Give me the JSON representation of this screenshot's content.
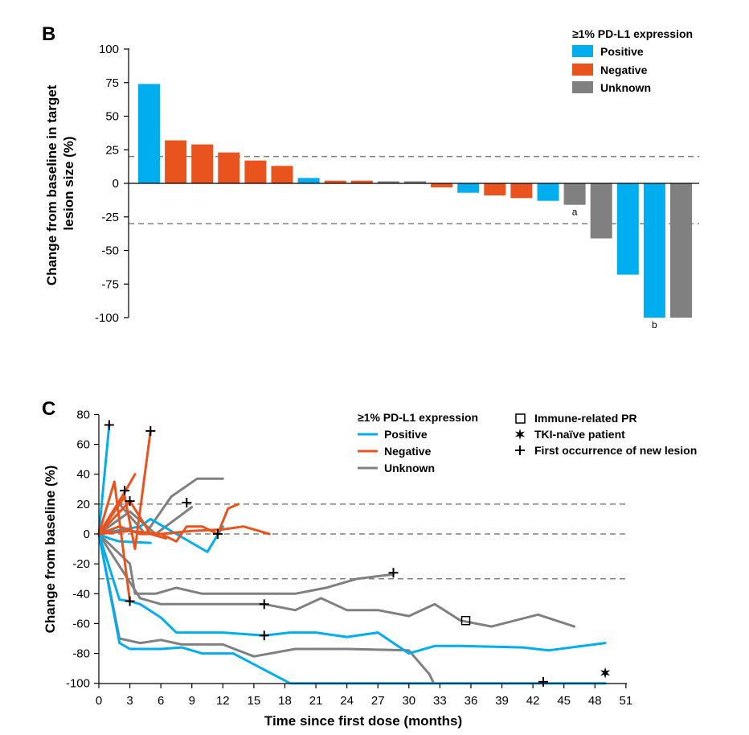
{
  "colors": {
    "Positive": "#00aeef",
    "Negative": "#e8531e",
    "Unknown": "#808080",
    "ref": "#808080"
  },
  "chart_data": [
    {
      "panel": "B",
      "type": "bar",
      "ylabel_lines": [
        "Change from baseline in target",
        "lesion size (%)"
      ],
      "ylim": [
        -100,
        100
      ],
      "yticks": [
        100,
        75,
        50,
        25,
        0,
        -25,
        -50,
        -75,
        -100
      ],
      "ref_lines": [
        20,
        -30
      ],
      "legend": {
        "title": "≥1% PD-L1 expression",
        "entries": [
          "Positive",
          "Negative",
          "Unknown"
        ]
      },
      "bars": [
        {
          "value": 74,
          "group": "Positive"
        },
        {
          "value": 32,
          "group": "Negative"
        },
        {
          "value": 29,
          "group": "Negative"
        },
        {
          "value": 23,
          "group": "Negative"
        },
        {
          "value": 17,
          "group": "Negative"
        },
        {
          "value": 13,
          "group": "Negative"
        },
        {
          "value": 4,
          "group": "Positive"
        },
        {
          "value": 2,
          "group": "Negative"
        },
        {
          "value": 2,
          "group": "Negative"
        },
        {
          "value": 1.5,
          "group": "Unknown"
        },
        {
          "value": 1.5,
          "group": "Unknown"
        },
        {
          "value": -3,
          "group": "Negative"
        },
        {
          "value": -7,
          "group": "Positive"
        },
        {
          "value": -9,
          "group": "Negative"
        },
        {
          "value": -11,
          "group": "Negative"
        },
        {
          "value": -13,
          "group": "Positive"
        },
        {
          "value": -16,
          "group": "Unknown",
          "note": "a"
        },
        {
          "value": -41,
          "group": "Unknown"
        },
        {
          "value": -68,
          "group": "Positive"
        },
        {
          "value": -100,
          "group": "Positive",
          "note": "b"
        },
        {
          "value": -100,
          "group": "Unknown"
        }
      ]
    },
    {
      "panel": "C",
      "type": "line",
      "xlabel": "Time since first dose (months)",
      "ylabel": "Change from baseline (%)",
      "xlim": [
        0,
        51
      ],
      "ylim": [
        -100,
        80
      ],
      "xticks": [
        0,
        3,
        6,
        9,
        12,
        15,
        18,
        21,
        24,
        27,
        30,
        33,
        36,
        39,
        42,
        45,
        48,
        51
      ],
      "yticks": [
        80,
        60,
        40,
        20,
        0,
        -20,
        -40,
        -60,
        -80,
        -100
      ],
      "ref_lines": [
        20,
        0,
        -30
      ],
      "legend": {
        "title": "≥1% PD-L1 expression",
        "entries": [
          "Positive",
          "Negative",
          "Unknown"
        ]
      },
      "marker_legend": [
        "Immune-related PR",
        "TKI-naïve patient",
        "First occurrence of new lesion"
      ],
      "series": [
        {
          "group": "Unknown",
          "points": [
            [
              0,
              0
            ],
            [
              2,
              20
            ],
            [
              4.5,
              0
            ],
            [
              7,
              25
            ],
            [
              9.5,
              37
            ],
            [
              12,
              37
            ]
          ]
        },
        {
          "group": "Unknown",
          "points": [
            [
              0,
              0
            ],
            [
              3,
              15
            ],
            [
              5.5,
              0
            ],
            [
              9,
              18
            ]
          ]
        },
        {
          "group": "Unknown",
          "points": [
            [
              0,
              0
            ],
            [
              3,
              -20
            ],
            [
              3.5,
              -40
            ],
            [
              5.5,
              -40
            ],
            [
              7.5,
              -36
            ],
            [
              10,
              -40
            ],
            [
              13,
              -40
            ],
            [
              19,
              -40
            ],
            [
              22,
              -36
            ],
            [
              25,
              -30
            ],
            [
              28.5,
              -27
            ]
          ]
        },
        {
          "group": "Unknown",
          "points": [
            [
              0,
              0
            ],
            [
              4,
              -43
            ],
            [
              6,
              -47
            ],
            [
              10,
              -47
            ],
            [
              14,
              -47
            ],
            [
              16,
              -47
            ],
            [
              19,
              -51
            ],
            [
              21.5,
              -43
            ],
            [
              24,
              -51
            ],
            [
              27,
              -51
            ],
            [
              30,
              -55
            ],
            [
              32.5,
              -47
            ],
            [
              35,
              -58
            ],
            [
              38,
              -62
            ],
            [
              42.5,
              -54
            ],
            [
              46,
              -62
            ]
          ]
        },
        {
          "group": "Unknown",
          "points": [
            [
              0,
              0
            ],
            [
              2,
              -70
            ],
            [
              4,
              -73
            ],
            [
              6,
              -71
            ],
            [
              8,
              -74
            ],
            [
              12,
              -74
            ],
            [
              15,
              -82
            ],
            [
              19,
              -77
            ],
            [
              24,
              -77
            ],
            [
              30,
              -78
            ],
            [
              32,
              -94
            ],
            [
              32.4,
              -100
            ]
          ]
        },
        {
          "group": "Positive",
          "points": [
            [
              0,
              0
            ],
            [
              1,
              73
            ]
          ]
        },
        {
          "group": "Positive",
          "points": [
            [
              0,
              0
            ],
            [
              1,
              -3
            ],
            [
              2,
              -5
            ],
            [
              5,
              -6
            ]
          ]
        },
        {
          "group": "Positive",
          "points": [
            [
              0,
              0
            ],
            [
              4,
              5
            ],
            [
              5,
              10
            ],
            [
              7.5,
              0
            ],
            [
              10.5,
              -12
            ],
            [
              12,
              5
            ]
          ]
        },
        {
          "group": "Positive",
          "points": [
            [
              0,
              0
            ],
            [
              2,
              -44
            ],
            [
              3,
              -45
            ],
            [
              4,
              -47
            ],
            [
              6,
              -56
            ],
            [
              7.5,
              -66
            ],
            [
              12,
              -66
            ],
            [
              16,
              -68
            ],
            [
              18.5,
              -66
            ],
            [
              21,
              -66
            ],
            [
              24,
              -69
            ],
            [
              27,
              -66
            ],
            [
              30,
              -80
            ],
            [
              32.5,
              -75
            ],
            [
              35,
              -75
            ],
            [
              41,
              -76
            ],
            [
              43.5,
              -78
            ],
            [
              49,
              -73
            ]
          ]
        },
        {
          "group": "Positive",
          "points": [
            [
              0,
              0
            ],
            [
              2,
              -73
            ],
            [
              3,
              -77
            ],
            [
              6,
              -77
            ],
            [
              8,
              -76
            ],
            [
              10,
              -80
            ],
            [
              13,
              -80
            ],
            [
              18.5,
              -100
            ],
            [
              30,
              -100
            ],
            [
              49,
              -100
            ]
          ]
        },
        {
          "group": "Negative",
          "points": [
            [
              0,
              0
            ],
            [
              1.5,
              35
            ],
            [
              3,
              -45
            ]
          ]
        },
        {
          "group": "Negative",
          "points": [
            [
              0,
              0
            ],
            [
              2.5,
              28
            ],
            [
              3.5,
              40
            ]
          ]
        },
        {
          "group": "Negative",
          "points": [
            [
              0,
              0
            ],
            [
              2.5,
              25
            ],
            [
              3.5,
              -10
            ],
            [
              5,
              69
            ]
          ]
        },
        {
          "group": "Negative",
          "points": [
            [
              0,
              0
            ],
            [
              3,
              22
            ],
            [
              5,
              0
            ],
            [
              6.5,
              -3
            ]
          ]
        },
        {
          "group": "Negative",
          "points": [
            [
              0,
              0
            ],
            [
              2,
              5
            ],
            [
              4,
              0
            ],
            [
              6,
              0
            ],
            [
              7.5,
              -5
            ],
            [
              8.5,
              5
            ],
            [
              10,
              5
            ],
            [
              11.5,
              0
            ],
            [
              12.5,
              17
            ],
            [
              13.5,
              20
            ]
          ]
        },
        {
          "group": "Negative",
          "points": [
            [
              0,
              0
            ],
            [
              3,
              2
            ],
            [
              6,
              0
            ],
            [
              9,
              2
            ],
            [
              12,
              3
            ],
            [
              14,
              5
            ],
            [
              16.5,
              0
            ]
          ]
        }
      ],
      "markers": [
        {
          "type": "plus",
          "x": 1,
          "y": 73
        },
        {
          "type": "plus",
          "x": 2.5,
          "y": 29
        },
        {
          "type": "plus",
          "x": 3,
          "y": 22
        },
        {
          "type": "plus",
          "x": 5,
          "y": 69
        },
        {
          "type": "plus",
          "x": 8.5,
          "y": 21
        },
        {
          "type": "plus",
          "x": 11.5,
          "y": 0
        },
        {
          "type": "plus",
          "x": 3,
          "y": -45
        },
        {
          "type": "plus",
          "x": 16,
          "y": -47
        },
        {
          "type": "plus",
          "x": 16,
          "y": -68
        },
        {
          "type": "plus",
          "x": 28.5,
          "y": -26
        },
        {
          "type": "plus",
          "x": 43,
          "y": -99
        },
        {
          "type": "square",
          "x": 35.5,
          "y": -58
        },
        {
          "type": "star",
          "x": 49,
          "y": -93
        }
      ]
    }
  ]
}
